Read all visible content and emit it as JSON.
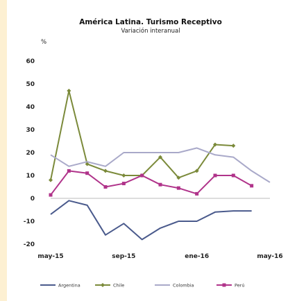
{
  "chart_data": {
    "type": "line",
    "title": "América Latina. Turismo Receptivo",
    "subtitle": "Variación interanual",
    "ylabel": "%",
    "xlabel": "",
    "ylim": [
      -20,
      60
    ],
    "yticks": [
      -20,
      -10,
      0,
      10,
      20,
      30,
      40,
      50,
      60
    ],
    "x_tick_labels": [
      {
        "label": "may-15",
        "index": 0
      },
      {
        "label": "sep-15",
        "index": 4
      },
      {
        "label": "ene-16",
        "index": 8
      },
      {
        "label": "may-16",
        "index": 12
      }
    ],
    "grid": false,
    "legend_position": "bottom",
    "series": [
      {
        "name": "Argentina",
        "color": "#4a5a8c",
        "marker": "none",
        "values": [
          -7,
          -1,
          -3,
          -16,
          -11,
          -18,
          -13,
          -10,
          -10,
          -6,
          -5.5,
          -5.5,
          null
        ]
      },
      {
        "name": "Chile",
        "color": "#7b8a3a",
        "marker": "diamond",
        "values": [
          8,
          47,
          15,
          12,
          10,
          10,
          18,
          9,
          12,
          23.5,
          23,
          null,
          null
        ]
      },
      {
        "name": "Colombia",
        "color": "#a9a9c9",
        "marker": "none",
        "values": [
          19,
          14,
          16,
          14,
          20,
          20,
          20,
          20,
          22,
          19,
          18,
          12,
          7
        ]
      },
      {
        "name": "Perú",
        "color": "#b0338a",
        "marker": "square",
        "values": [
          1.5,
          12,
          11,
          5,
          6.5,
          10,
          6,
          4.5,
          2,
          10,
          10,
          5.5,
          null
        ]
      }
    ]
  }
}
